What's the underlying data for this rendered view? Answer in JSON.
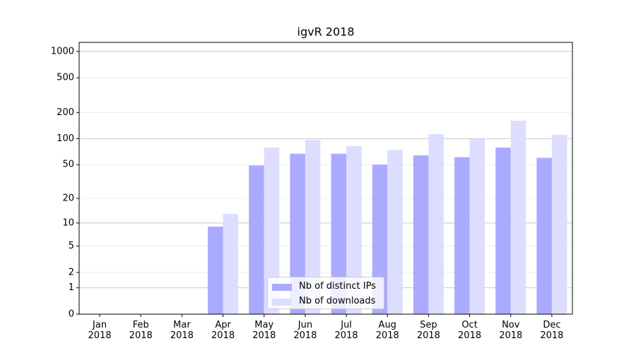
{
  "chart_data": {
    "type": "bar",
    "title": "igvR 2018",
    "categories": [
      "Jan\n2018",
      "Feb\n2018",
      "Mar\n2018",
      "Apr\n2018",
      "May\n2018",
      "Jun\n2018",
      "Jul\n2018",
      "Aug\n2018",
      "Sep\n2018",
      "Oct\n2018",
      "Nov\n2018",
      "Dec\n2018"
    ],
    "series": [
      {
        "name": "Nb of distinct IPs",
        "color": "#aaaaff",
        "values": [
          0,
          0,
          0,
          9,
          49,
          67,
          67,
          50,
          64,
          61,
          79,
          60
        ]
      },
      {
        "name": "Nb of downloads",
        "color": "#ddddff",
        "values": [
          0,
          0,
          0,
          13,
          79,
          97,
          82,
          74,
          113,
          100,
          161,
          111
        ]
      }
    ],
    "yscale": "symlog",
    "ylim": [
      0,
      1270
    ],
    "yticks": [
      0,
      1,
      2,
      5,
      10,
      20,
      50,
      100,
      200,
      500,
      1000
    ],
    "grid": true,
    "legend": "lower center"
  }
}
